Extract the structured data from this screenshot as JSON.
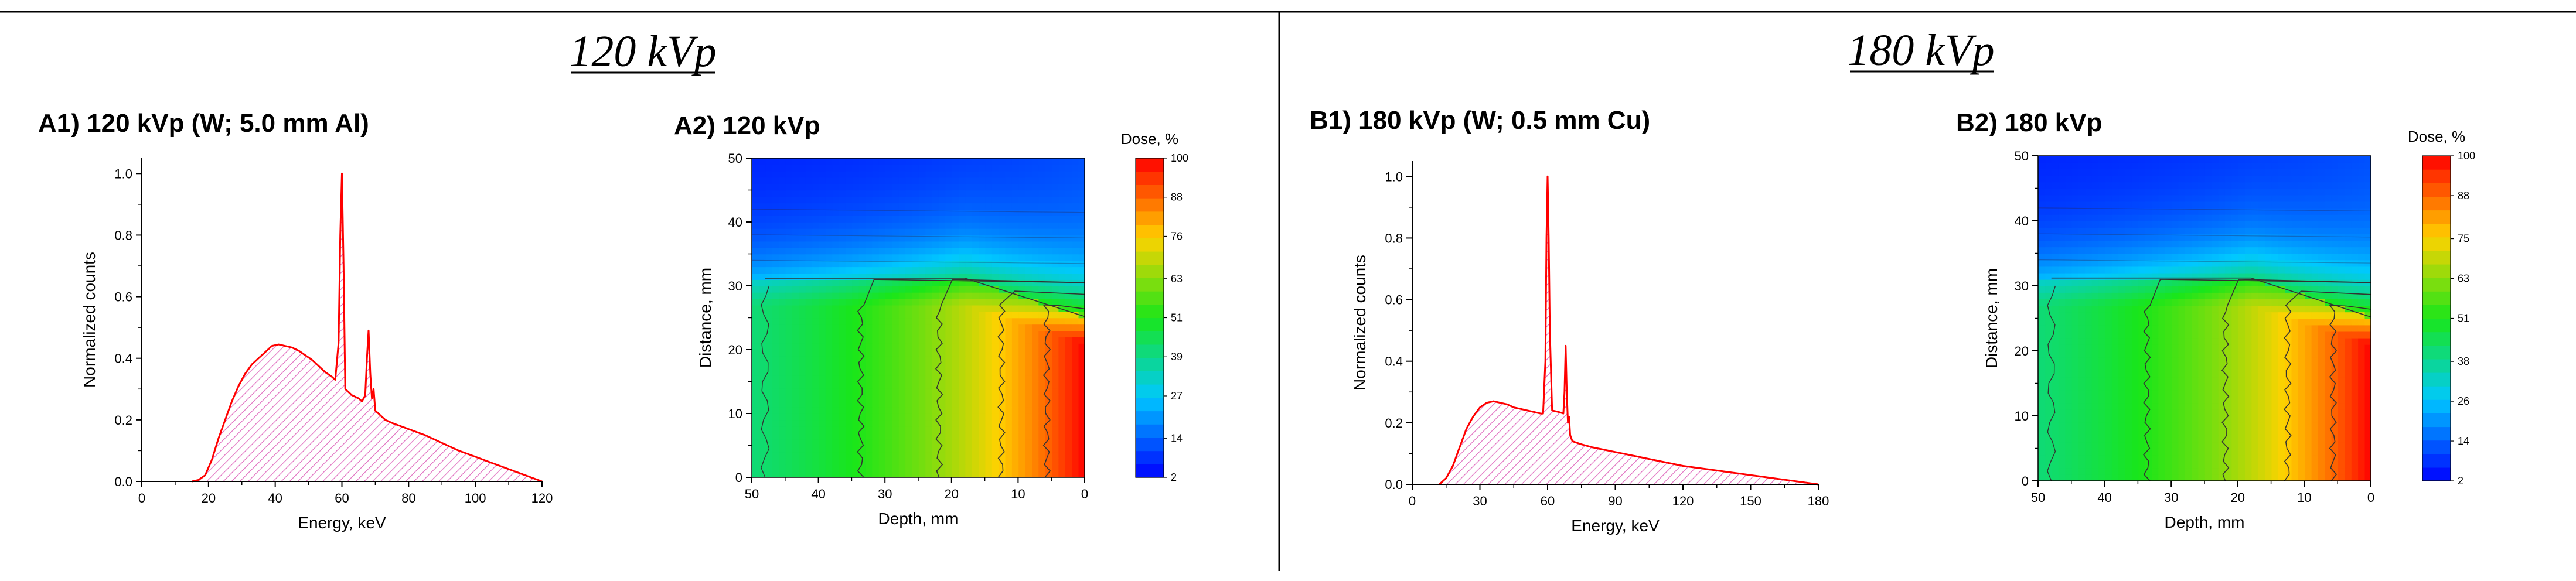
{
  "sections": [
    {
      "title": "120 kVp"
    },
    {
      "title": "180 kVp"
    }
  ],
  "colors": {
    "spectrum_line": "#ff0000",
    "spectrum_hatch": "#e070c0",
    "contour_line": "#333333",
    "axis": "#000000"
  },
  "chart_data": [
    {
      "id": "A1",
      "type": "area",
      "title": "A1) 120 kVp (W; 5.0 mm Al)",
      "xlabel": "Energy, keV",
      "ylabel": "Normalized counts",
      "xlim": [
        0,
        120
      ],
      "ylim": [
        0,
        1.05
      ],
      "xticks": [
        0,
        20,
        40,
        60,
        80,
        100,
        120
      ],
      "yticks": [
        0.0,
        0.2,
        0.4,
        0.6,
        0.8,
        1.0
      ],
      "x": [
        15,
        17,
        19,
        21,
        23,
        25,
        27,
        29,
        31,
        33,
        35,
        37,
        39,
        41,
        43,
        45,
        47,
        49,
        51,
        53,
        55,
        57,
        58,
        59,
        59.5,
        60,
        60.5,
        61,
        62,
        63,
        65,
        66,
        67,
        67.5,
        68,
        68.5,
        69,
        69.5,
        70,
        71,
        73,
        75,
        80,
        85,
        90,
        95,
        100,
        105,
        110,
        115,
        120
      ],
      "y": [
        0.0,
        0.005,
        0.02,
        0.07,
        0.14,
        0.2,
        0.26,
        0.31,
        0.35,
        0.38,
        0.4,
        0.42,
        0.44,
        0.445,
        0.44,
        0.435,
        0.425,
        0.41,
        0.395,
        0.375,
        0.355,
        0.34,
        0.33,
        0.45,
        0.8,
        1.0,
        0.7,
        0.3,
        0.29,
        0.28,
        0.27,
        0.26,
        0.28,
        0.4,
        0.49,
        0.35,
        0.27,
        0.3,
        0.23,
        0.22,
        0.2,
        0.19,
        0.17,
        0.15,
        0.125,
        0.1,
        0.08,
        0.06,
        0.04,
        0.02,
        0.0
      ]
    },
    {
      "id": "A2",
      "type": "heatmap",
      "title": "A2) 120 kVp",
      "xlabel": "Depth, mm",
      "ylabel": "Distance, mm",
      "xlim": [
        50,
        0
      ],
      "ylim": [
        0,
        50
      ],
      "xticks": [
        50,
        40,
        30,
        20,
        10,
        0
      ],
      "yticks": [
        0,
        10,
        20,
        30,
        40,
        50
      ],
      "field_edge_mm": [
        31,
        25
      ],
      "colorbar": {
        "title": "Dose, %",
        "ticks": [
          2,
          14,
          27,
          39,
          51,
          63,
          76,
          88,
          100
        ]
      }
    },
    {
      "id": "B1",
      "type": "area",
      "title": "B1) 180 kVp (W; 0.5 mm Cu)",
      "xlabel": "Energy, keV",
      "ylabel": "Normalized counts",
      "xlim": [
        0,
        180
      ],
      "ylim": [
        0,
        1.05
      ],
      "xticks": [
        0,
        30,
        60,
        90,
        120,
        150,
        180
      ],
      "yticks": [
        0.0,
        0.2,
        0.4,
        0.6,
        0.8,
        1.0
      ],
      "x": [
        12,
        15,
        18,
        21,
        24,
        27,
        30,
        33,
        36,
        39,
        42,
        45,
        48,
        51,
        54,
        57,
        58,
        59,
        59.5,
        60,
        60.5,
        61,
        62,
        65,
        67,
        67.5,
        68,
        68.5,
        69,
        69.5,
        70,
        71,
        75,
        80,
        90,
        100,
        110,
        120,
        130,
        140,
        150,
        160,
        170,
        180
      ],
      "y": [
        0.0,
        0.02,
        0.06,
        0.12,
        0.18,
        0.22,
        0.25,
        0.265,
        0.27,
        0.265,
        0.26,
        0.25,
        0.245,
        0.24,
        0.235,
        0.23,
        0.23,
        0.4,
        0.8,
        1.0,
        0.8,
        0.5,
        0.24,
        0.235,
        0.23,
        0.3,
        0.45,
        0.3,
        0.2,
        0.22,
        0.16,
        0.14,
        0.13,
        0.12,
        0.105,
        0.09,
        0.075,
        0.06,
        0.05,
        0.04,
        0.03,
        0.02,
        0.01,
        0.0
      ]
    },
    {
      "id": "B2",
      "type": "heatmap",
      "title": "B2) 180 kVp",
      "xlabel": "Depth, mm",
      "ylabel": "Distance, mm",
      "xlim": [
        50,
        0
      ],
      "ylim": [
        0,
        50
      ],
      "xticks": [
        50,
        40,
        30,
        20,
        10,
        0
      ],
      "yticks": [
        0,
        10,
        20,
        30,
        40,
        50
      ],
      "field_edge_mm": [
        31,
        25
      ],
      "colorbar": {
        "title": "Dose, %",
        "ticks": [
          2,
          14,
          26,
          38,
          51,
          63,
          75,
          88,
          100
        ]
      }
    }
  ]
}
